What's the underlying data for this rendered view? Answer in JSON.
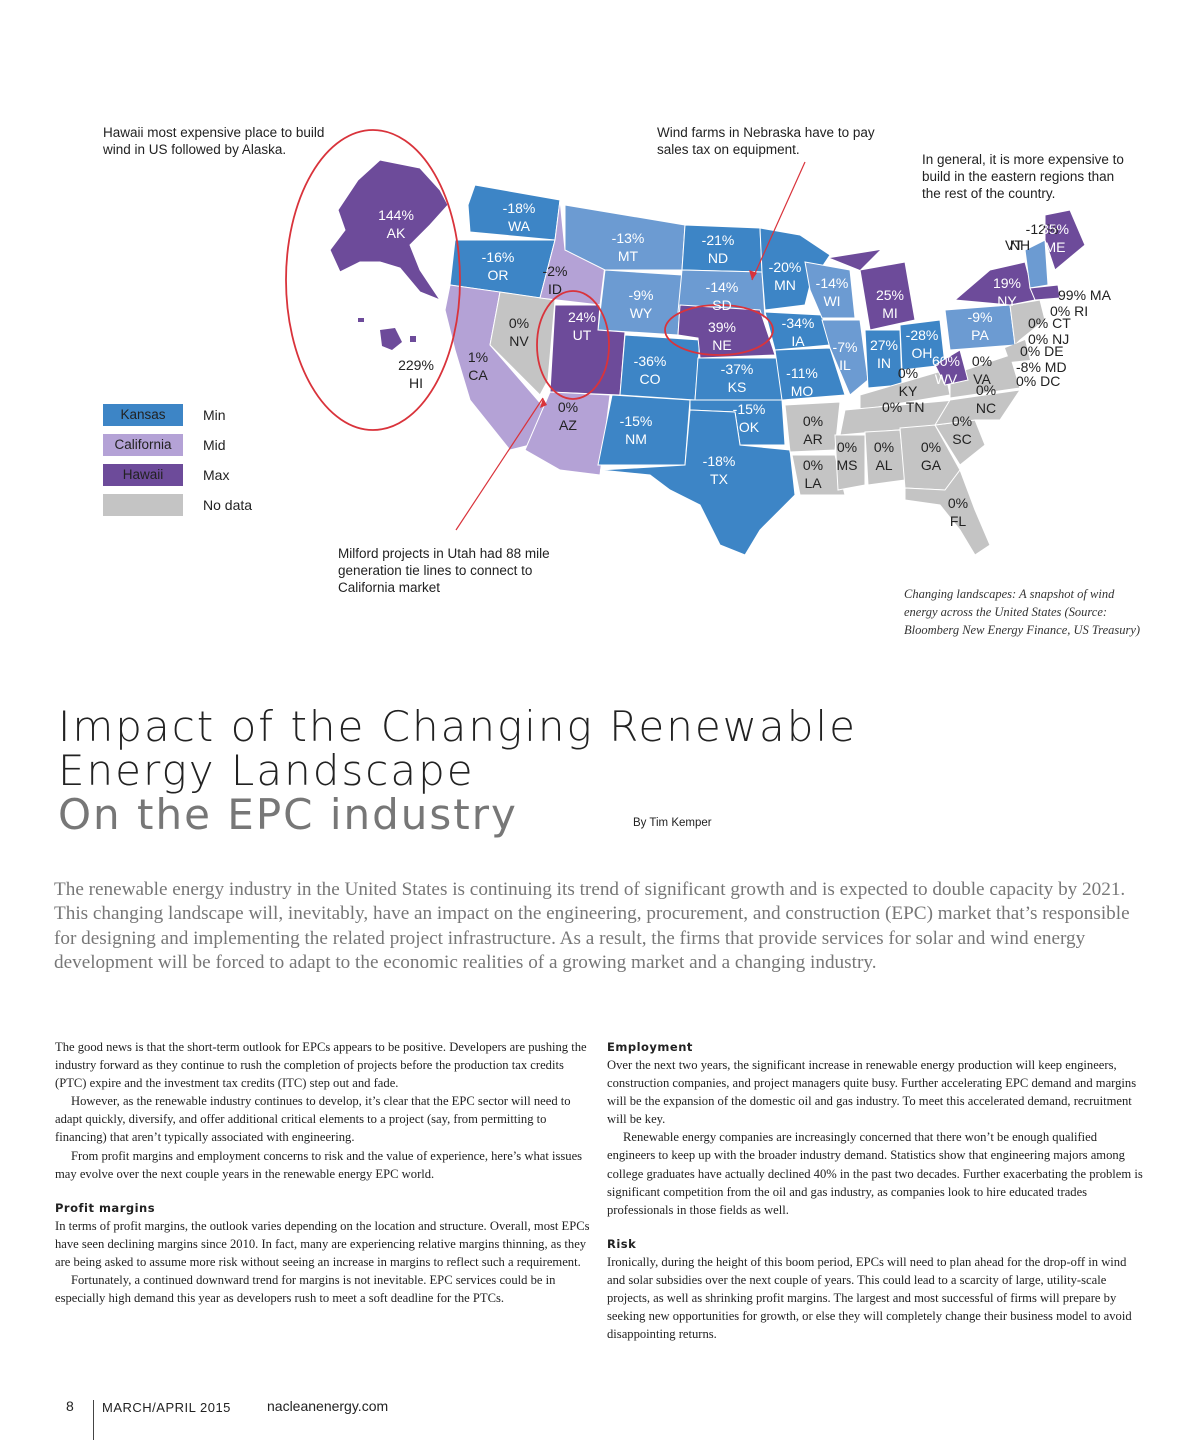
{
  "map": {
    "annotations": {
      "hawaii": "Hawaii most expensive place to build wind in US followed by Alaska.",
      "nebraska": "Wind farms in Nebraska have to pay sales tax on equipment.",
      "eastern": "In general, it is more expensive to build in the eastern regions than the rest of the country.",
      "utah": "Milford projects in Utah had 88 mile generation tie lines to connect to California market"
    },
    "legend": [
      {
        "swatch": "Kansas",
        "label": "Min",
        "color": "#3d85c6"
      },
      {
        "swatch": "California",
        "label": "Mid",
        "color": "#b4a2d6"
      },
      {
        "swatch": "Hawaii",
        "label": "Max",
        "color": "#6d4b9a"
      },
      {
        "swatch": "",
        "label": "No data",
        "color": "#c4c4c4"
      }
    ],
    "colors": {
      "min": "#3d85c6",
      "min_light": "#6c9bd2",
      "mid": "#b4a2d6",
      "max": "#6d4b9a",
      "nodata": "#c4c4c4",
      "circle": "#d9333b"
    },
    "states": [
      {
        "code": "AK",
        "value": "144%"
      },
      {
        "code": "HI",
        "value": "229%"
      },
      {
        "code": "WA",
        "value": "-18%"
      },
      {
        "code": "OR",
        "value": "-16%"
      },
      {
        "code": "ID",
        "value": "-2%"
      },
      {
        "code": "MT",
        "value": "-13%"
      },
      {
        "code": "ND",
        "value": "-21%"
      },
      {
        "code": "MN",
        "value": "-20%"
      },
      {
        "code": "SD",
        "value": "-14%"
      },
      {
        "code": "WY",
        "value": "-9%"
      },
      {
        "code": "WI",
        "value": "-14%"
      },
      {
        "code": "MI",
        "value": "25%"
      },
      {
        "code": "NV",
        "value": "0%"
      },
      {
        "code": "UT",
        "value": "24%"
      },
      {
        "code": "NE",
        "value": "39%"
      },
      {
        "code": "IA",
        "value": "-34%"
      },
      {
        "code": "CA",
        "value": "1%"
      },
      {
        "code": "CO",
        "value": "-36%"
      },
      {
        "code": "KS",
        "value": "-37%"
      },
      {
        "code": "IL",
        "value": "-7%"
      },
      {
        "code": "IN",
        "value": "27%"
      },
      {
        "code": "OH",
        "value": "-28%"
      },
      {
        "code": "MO",
        "value": "-11%"
      },
      {
        "code": "AZ",
        "value": "0%"
      },
      {
        "code": "NM",
        "value": "-15%"
      },
      {
        "code": "OK",
        "value": "-15%"
      },
      {
        "code": "TX",
        "value": "-18%"
      },
      {
        "code": "AR",
        "value": "0%"
      },
      {
        "code": "LA",
        "value": "0%"
      },
      {
        "code": "MS",
        "value": "0%"
      },
      {
        "code": "AL",
        "value": "0%"
      },
      {
        "code": "GA",
        "value": "0%"
      },
      {
        "code": "FL",
        "value": "0%"
      },
      {
        "code": "TN",
        "value": "0%"
      },
      {
        "code": "KY",
        "value": "0%"
      },
      {
        "code": "WV",
        "value": "60%"
      },
      {
        "code": "VA",
        "value": "0%"
      },
      {
        "code": "NC",
        "value": "0%"
      },
      {
        "code": "SC",
        "value": "0%"
      },
      {
        "code": "PA",
        "value": "-9%"
      },
      {
        "code": "NY",
        "value": "19%"
      },
      {
        "code": "VT",
        "value": "-12%"
      },
      {
        "code": "NH",
        "value": ""
      },
      {
        "code": "ME",
        "value": "35%"
      },
      {
        "code": "MA",
        "value": "99%"
      },
      {
        "code": "RI",
        "value": "0%"
      },
      {
        "code": "CT",
        "value": "0%"
      },
      {
        "code": "NJ",
        "value": "0%"
      },
      {
        "code": "DE",
        "value": "0%"
      },
      {
        "code": "MD",
        "value": "-8%"
      },
      {
        "code": "DC",
        "value": "0%"
      }
    ],
    "caption": "Changing landscapes: A snapshot of wind energy across the United States (Source: Bloomberg New Energy Finance, US Treasury)"
  },
  "article": {
    "title_line1": "Impact of the Changing Renewable",
    "title_line2": "Energy Landscape",
    "subtitle": "On the EPC industry",
    "byline": "By Tim Kemper",
    "intro": "The renewable energy industry in the United States is continuing its trend of significant growth and is expected to double capacity by 2021. This changing landscape will, inevitably, have an impact on the engineering, procurement, and construction (EPC) market that’s responsible for designing and implementing the related project infrastructure. As a result, the firms that provide services for solar and wind energy development will be forced to adapt to the economic realities of a growing market and a changing industry.",
    "left": {
      "p1": "The good news is that the short-term outlook for EPCs appears to be positive. Developers are pushing the industry forward as they continue to rush the completion of projects before the production tax credits (PTC) expire and the investment tax credits (ITC) step out and fade.",
      "p2": "However, as the renewable industry continues to develop, it’s clear that the EPC sector will need to adapt quickly, diversify, and offer additional critical elements to a project (say, from permitting to financing) that aren’t typically associated with engineering.",
      "p3": "From profit margins and employment concerns to risk and the value of experience, here’s what issues may evolve over the next couple years in the renewable energy EPC world.",
      "h_profit": "Profit margins",
      "p4": "In terms of profit margins, the outlook varies depending on the location and structure. Overall, most EPCs have seen declining margins since 2010. In fact, many are experiencing relative margins thinning, as they are being asked to assume more risk without seeing an increase in margins to reflect such a requirement.",
      "p5": "Fortunately, a continued downward trend for margins is not inevitable. EPC services could be in especially high demand this year as developers rush to meet a soft deadline for the PTCs."
    },
    "right": {
      "h_employment": "Employment",
      "p1": "Over the next two years, the significant increase in renewable energy production will keep engineers, construction companies, and project managers quite busy. Further accelerating EPC demand and margins will be the expansion of the domestic oil and gas industry. To meet this accelerated demand, recruitment will be key.",
      "p2": "Renewable energy companies are increasingly concerned that there won’t be enough qualified engineers to keep up with the broader industry demand. Statistics show that engineering majors among college graduates have actually declined 40% in the past two decades. Further exacerbating the problem is significant competition from the oil and gas industry, as companies look to hire educated trades professionals in those fields as well.",
      "h_risk": "Risk",
      "p3": "Ironically, during the height of this boom period, EPCs will need to plan ahead for the drop-off in wind and solar subsidies over the next couple of years. This could lead to a scarcity of large, utility-scale projects, as well as shrinking profit margins. The largest and most successful of firms will prepare by seeking new opportunities for growth, or else they will completely change their business model to avoid disappointing returns."
    }
  },
  "footer": {
    "page": "8",
    "issue": "MARCH/APRIL 2015",
    "site": "nacleanenergy.com"
  }
}
